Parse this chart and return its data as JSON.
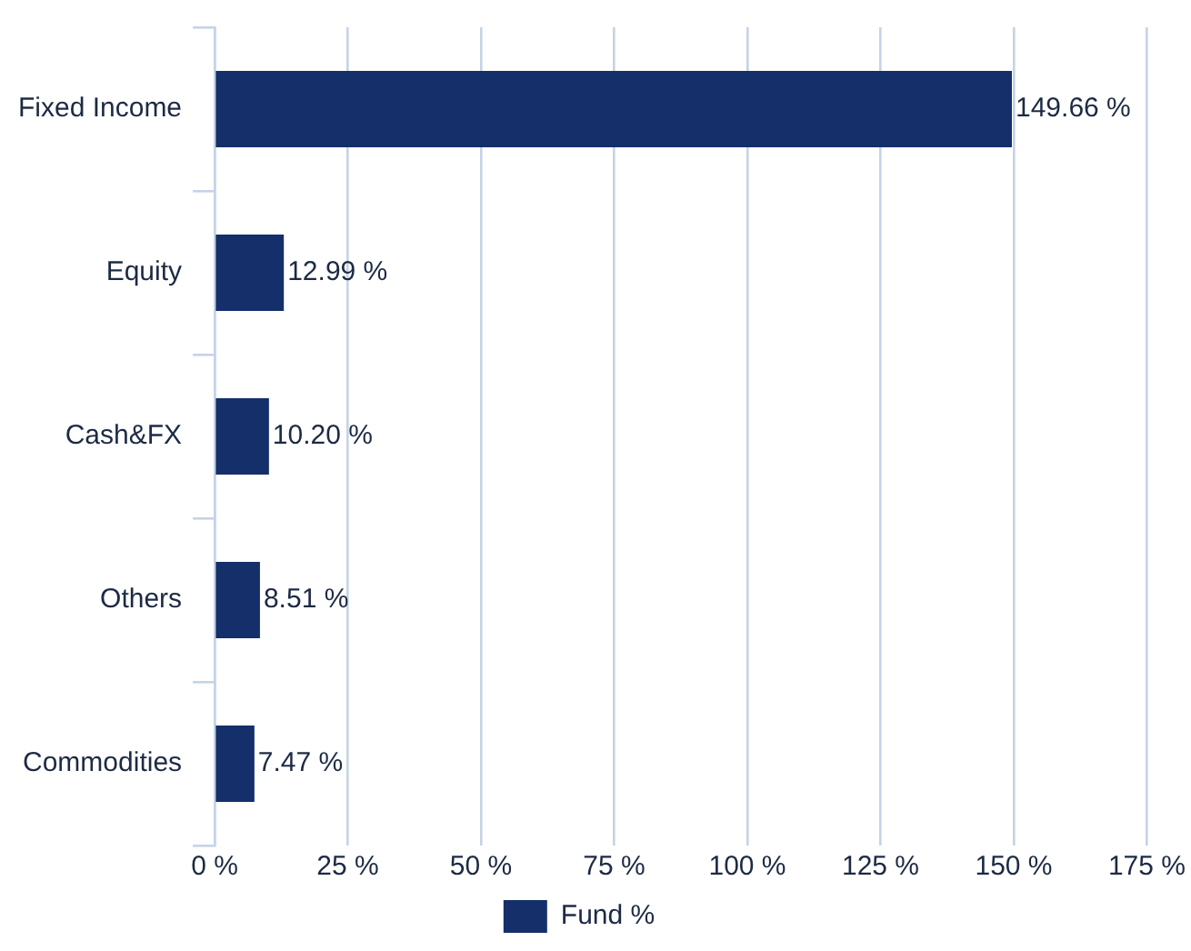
{
  "chart_data": {
    "type": "bar",
    "orientation": "horizontal",
    "categories": [
      "Fixed Income",
      "Equity",
      "Cash&FX",
      "Others",
      "Commodities"
    ],
    "series": [
      {
        "name": "Fund %",
        "color": "#142f69",
        "values": [
          149.66,
          12.99,
          10.2,
          8.51,
          7.47
        ],
        "value_labels": [
          "149.66 %",
          "12.99 %",
          "10.20 %",
          "8.51 %",
          "7.47 %"
        ]
      }
    ],
    "xlim": [
      0,
      175
    ],
    "xticks": [
      {
        "value": 0,
        "label": "0 %"
      },
      {
        "value": 25,
        "label": "25 %"
      },
      {
        "value": 50,
        "label": "50 %"
      },
      {
        "value": 75,
        "label": "75 %"
      },
      {
        "value": 100,
        "label": "100 %"
      },
      {
        "value": 125,
        "label": "125 %"
      },
      {
        "value": 150,
        "label": "150 %"
      },
      {
        "value": 175,
        "label": "175 %"
      }
    ],
    "grid": "x",
    "legend": "bottom"
  }
}
